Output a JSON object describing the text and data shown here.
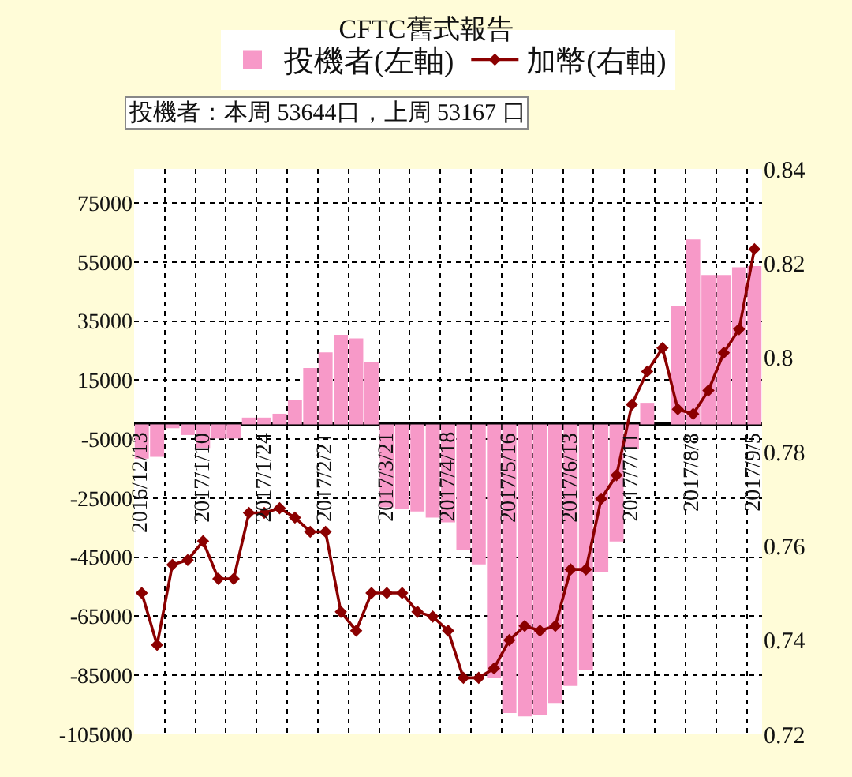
{
  "chart_data": {
    "type": "bar",
    "title": "CFTC舊式報告",
    "annotations": [
      "投機者：本周 53644口，上周 53167 口"
    ],
    "categories": [
      "2016/12/13",
      null,
      null,
      null,
      "2017/1/10",
      null,
      null,
      null,
      "2017/1/24",
      null,
      null,
      null,
      "2017/2/21",
      null,
      null,
      null,
      "2017/3/21",
      null,
      null,
      null,
      "2017/4/18",
      null,
      null,
      null,
      "2017/5/16",
      null,
      null,
      null,
      "2017/6/13",
      null,
      null,
      null,
      "2017/7/11",
      null,
      null,
      null,
      "2017/8/8",
      null,
      null,
      null,
      "2017/9/5"
    ],
    "series": [
      {
        "name": "投機者(左軸)",
        "color": "#f799c8",
        "values": [
          -11600,
          -11000,
          -1300,
          -3600,
          -8000,
          -4800,
          -4800,
          2300,
          2300,
          3600,
          8400,
          19100,
          24400,
          30300,
          29100,
          21100,
          -28100,
          -28600,
          -29500,
          -31600,
          -33200,
          -42400,
          -47400,
          -86000,
          -97800,
          -98900,
          -98300,
          -94400,
          -88600,
          -83100,
          -49900,
          -39700,
          -8400,
          7300,
          null,
          40200,
          62600,
          50600,
          50600,
          53200,
          53600
        ]
      },
      {
        "name": "加幣(右軸)",
        "type": "line",
        "axis": "y2",
        "color": "#8b0000",
        "values": [
          0.75,
          0.739,
          0.756,
          0.757,
          0.761,
          0.753,
          0.753,
          0.767,
          0.767,
          0.768,
          0.766,
          0.763,
          0.763,
          0.746,
          0.742,
          0.75,
          0.75,
          0.75,
          0.746,
          0.745,
          0.742,
          0.732,
          0.732,
          0.734,
          0.74,
          0.743,
          0.742,
          0.743,
          0.755,
          0.755,
          0.77,
          0.775,
          0.79,
          0.797,
          0.802,
          0.789,
          0.788,
          0.793,
          0.801,
          0.806,
          0.823
        ]
      }
    ],
    "ylim": [
      -105000,
      86500
    ],
    "yticks": [
      -105000,
      -85000,
      -65000,
      -45000,
      -25000,
      -5000,
      15000,
      35000,
      55000,
      75000
    ],
    "y2lim": [
      0.72,
      0.84
    ],
    "y2ticks": [
      0.72,
      0.74,
      0.76,
      0.78,
      {
        "value": 0.8,
        "label": "0.8"
      },
      0.82,
      0.84
    ],
    "grid": true,
    "legend": "top",
    "marker": "diamond",
    "line_style": "solid"
  }
}
